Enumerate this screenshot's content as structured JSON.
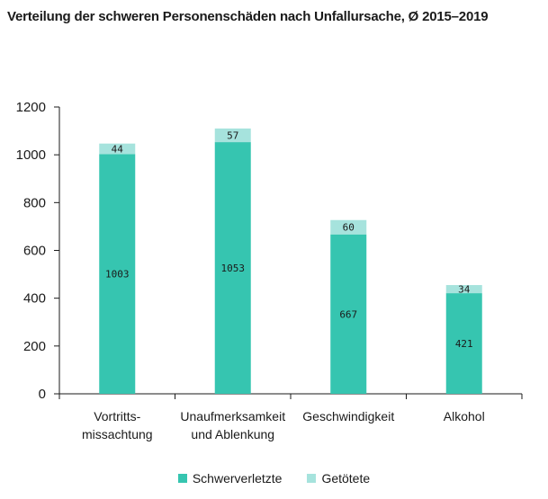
{
  "title": "Verteilung der schweren Personenschäden nach Unfallursache, Ø 2015–2019",
  "colors": {
    "severe": "#36c5b0",
    "killed": "#a6e3dd",
    "axis": "#1a1a1a"
  },
  "chart_data": {
    "type": "bar",
    "stacked": true,
    "title": "Verteilung der schweren Personenschäden nach Unfallursache, Ø 2015–2019",
    "categories": [
      [
        "Vortritts-",
        "missachtung"
      ],
      [
        "Unaufmerksamkeit",
        "und Ablenkung"
      ],
      [
        "Geschwindigkeit"
      ],
      [
        "Alkohol"
      ]
    ],
    "series": [
      {
        "name": "Schwerverletzte",
        "values": [
          1003,
          1053,
          667,
          421
        ],
        "color": "#36c5b0"
      },
      {
        "name": "Getötete",
        "values": [
          44,
          57,
          60,
          34
        ],
        "color": "#a6e3dd"
      }
    ],
    "ylim": [
      0,
      1200
    ],
    "yticks": [
      0,
      200,
      400,
      600,
      800,
      1000,
      1200
    ],
    "legend": "bottom"
  }
}
